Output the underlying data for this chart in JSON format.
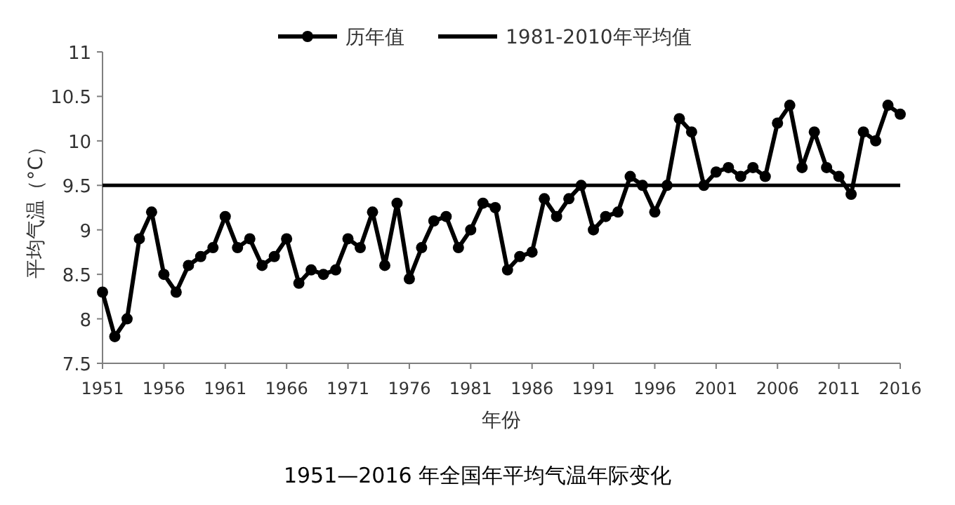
{
  "chart_data": {
    "type": "line",
    "title": "1951—2016 年全国年平均气温年际变化",
    "xlabel": "年份",
    "ylabel": "平均气温（°C）",
    "x": [
      1951,
      1952,
      1953,
      1954,
      1955,
      1956,
      1957,
      1958,
      1959,
      1960,
      1961,
      1962,
      1963,
      1964,
      1965,
      1966,
      1967,
      1968,
      1969,
      1970,
      1971,
      1972,
      1973,
      1974,
      1975,
      1976,
      1977,
      1978,
      1979,
      1980,
      1981,
      1982,
      1983,
      1984,
      1985,
      1986,
      1987,
      1988,
      1989,
      1990,
      1991,
      1992,
      1993,
      1994,
      1995,
      1996,
      1997,
      1998,
      1999,
      2000,
      2001,
      2002,
      2003,
      2004,
      2005,
      2006,
      2007,
      2008,
      2009,
      2010,
      2011,
      2012,
      2013,
      2014,
      2015,
      2016
    ],
    "series": [
      {
        "name": "历年值",
        "color": "#000000",
        "values": [
          8.3,
          7.8,
          8.0,
          8.9,
          9.2,
          8.5,
          8.3,
          8.6,
          8.7,
          8.8,
          9.15,
          8.8,
          8.9,
          8.6,
          8.7,
          8.9,
          8.4,
          8.55,
          8.5,
          8.55,
          8.9,
          8.8,
          9.2,
          8.6,
          9.3,
          8.45,
          8.8,
          9.1,
          9.15,
          8.8,
          9.0,
          9.3,
          9.25,
          8.55,
          8.7,
          8.75,
          9.35,
          9.15,
          9.35,
          9.5,
          9.0,
          9.15,
          9.2,
          9.6,
          9.5,
          9.2,
          9.5,
          10.25,
          10.1,
          9.5,
          9.65,
          9.7,
          9.6,
          9.7,
          9.6,
          10.2,
          10.4,
          9.7,
          10.1,
          9.7,
          9.6,
          9.4,
          10.1,
          10.0,
          10.4,
          10.3
        ]
      }
    ],
    "ref_lines": [
      {
        "axis": "y",
        "value": 9.5,
        "label": "1981-2010年平均值",
        "color": "#000000"
      }
    ],
    "xlim": [
      1951,
      2016
    ],
    "xticks": [
      1951,
      1956,
      1961,
      1966,
      1971,
      1976,
      1981,
      1986,
      1991,
      1996,
      2001,
      2006,
      2011,
      2016
    ],
    "ylim": [
      7.5,
      11
    ],
    "yticks": [
      7.5,
      8,
      8.5,
      9,
      9.5,
      10,
      10.5,
      11
    ],
    "grid": false,
    "legend": "top",
    "marker": "circle",
    "line_style": "solid"
  }
}
